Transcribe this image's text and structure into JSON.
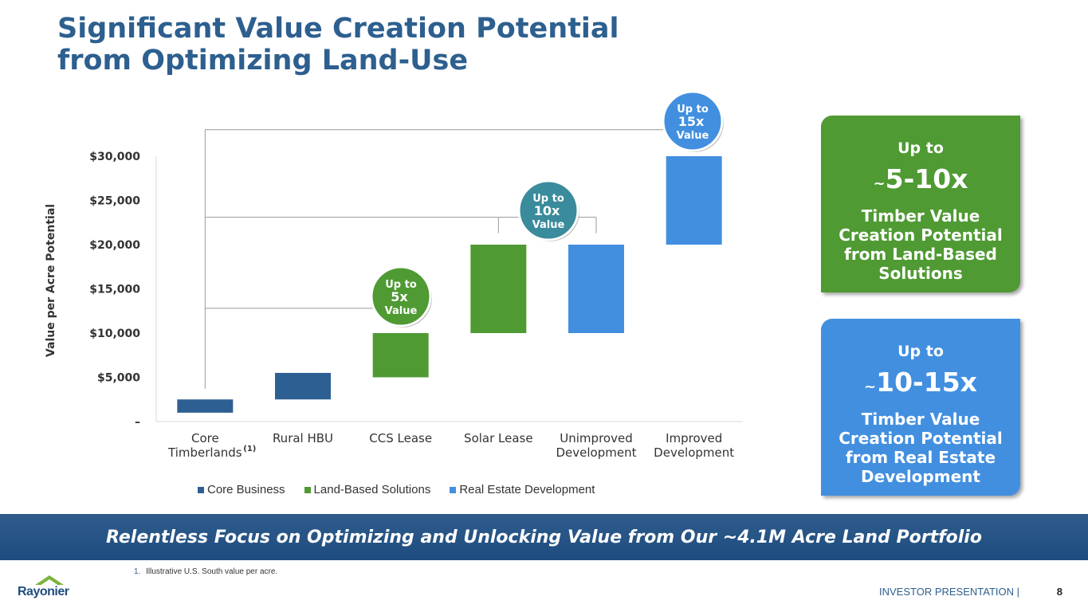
{
  "title": {
    "line1": "Significant Value Creation Potential",
    "line2": "from Optimizing Land-Use"
  },
  "colors": {
    "core": "#2e5f92",
    "land": "#4f9a33",
    "re": "#428fe0",
    "badge_land": "#4f9a33",
    "badge_10x": "#3a8b9b",
    "badge_re": "#428fe0",
    "title": "#2d5f8f"
  },
  "chart_data": {
    "type": "bar",
    "subtype": "floating-range",
    "ylabel": "Value per Acre Potential",
    "ylim": [
      0,
      30000
    ],
    "ytick_values": [
      0,
      5000,
      10000,
      15000,
      20000,
      25000,
      30000
    ],
    "ytick_labels": [
      "–",
      "$5,000",
      "$10,000",
      "$15,000",
      "$20,000",
      "$25,000",
      "$30,000"
    ],
    "categories": [
      {
        "line1": "Core",
        "line2": "Timberlands",
        "footnote": "(1)"
      },
      {
        "line1": "Rural HBU",
        "line2": ""
      },
      {
        "line1": "CCS Lease",
        "line2": ""
      },
      {
        "line1": "Solar Lease",
        "line2": ""
      },
      {
        "line1": "Unimproved",
        "line2": "Development"
      },
      {
        "line1": "Improved",
        "line2": "Development"
      }
    ],
    "bars": [
      {
        "low": 1000,
        "high": 2500,
        "series": "Core Business"
      },
      {
        "low": 2500,
        "high": 5500,
        "series": "Core Business"
      },
      {
        "low": 5000,
        "high": 10000,
        "series": "Land-Based Solutions"
      },
      {
        "low": 10000,
        "high": 20000,
        "series": "Land-Based Solutions"
      },
      {
        "low": 10000,
        "high": 20000,
        "series": "Real Estate Development"
      },
      {
        "low": 20000,
        "high": 30000,
        "series": "Real Estate Development"
      }
    ],
    "legend": [
      "Core Business",
      "Land-Based Solutions",
      "Real Estate Development"
    ],
    "legend_position": "bottom",
    "badges": [
      {
        "line1": "Up to",
        "line2": "5x",
        "line3": "Value"
      },
      {
        "line1": "Up to",
        "line2": "10x",
        "line3": "Value"
      },
      {
        "line1": "Up to",
        "line2": "15x",
        "line3": "Value"
      }
    ]
  },
  "callouts": {
    "land": {
      "lead": "Up to",
      "tilde": "~",
      "big": "5-10x",
      "desc1": "Timber Value",
      "desc2": "Creation Potential",
      "desc3": "from Land-Based",
      "desc4": "Solutions"
    },
    "re": {
      "lead": "Up to",
      "tilde": "~",
      "big": "10-15x",
      "desc1": "Timber Value",
      "desc2": "Creation Potential",
      "desc3": "from Real Estate",
      "desc4": "Development"
    }
  },
  "banner": "Relentless Focus on Optimizing and Unlocking Value from Our ~4.1M Acre Land Portfolio",
  "footnote": {
    "num": "1.",
    "text": "Illustrative U.S. South value per acre."
  },
  "logo": "Rayonier",
  "footer": {
    "label": "INVESTOR PRESENTATION |",
    "page": "8"
  }
}
